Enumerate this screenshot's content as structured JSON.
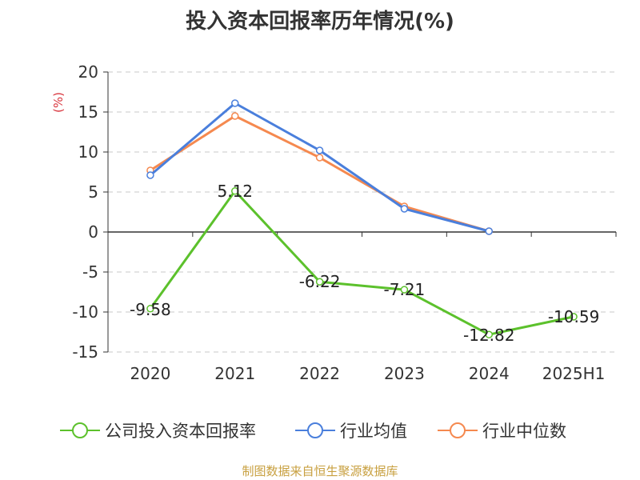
{
  "chart_data": {
    "type": "line",
    "title": "投入资本回报率历年情况(%)",
    "ylabel": "(%)",
    "xlabel": "",
    "categories": [
      "2020",
      "2021",
      "2022",
      "2023",
      "2024",
      "2025H1"
    ],
    "ylim": [
      -15,
      20
    ],
    "yticks": [
      20,
      15,
      10,
      5,
      0,
      -5,
      -10,
      -15
    ],
    "grid": true,
    "legend_position": "bottom",
    "series": [
      {
        "name": "公司投入资本回报率",
        "color": "#5cc12c",
        "values": [
          -9.58,
          5.12,
          -6.22,
          -7.21,
          -12.82,
          -10.59
        ],
        "labels": [
          "-9.58",
          "5.12",
          "-6.22",
          "-7.21",
          "-12.82",
          "-10.59"
        ]
      },
      {
        "name": "行业均值",
        "color": "#4a7fdc",
        "values": [
          7.1,
          16.1,
          10.2,
          2.9,
          0.1,
          null
        ]
      },
      {
        "name": "行业中位数",
        "color": "#f5894f",
        "values": [
          7.7,
          14.5,
          9.3,
          3.2,
          0.1,
          null
        ]
      }
    ]
  },
  "source": "制图数据来自恒生聚源数据库"
}
